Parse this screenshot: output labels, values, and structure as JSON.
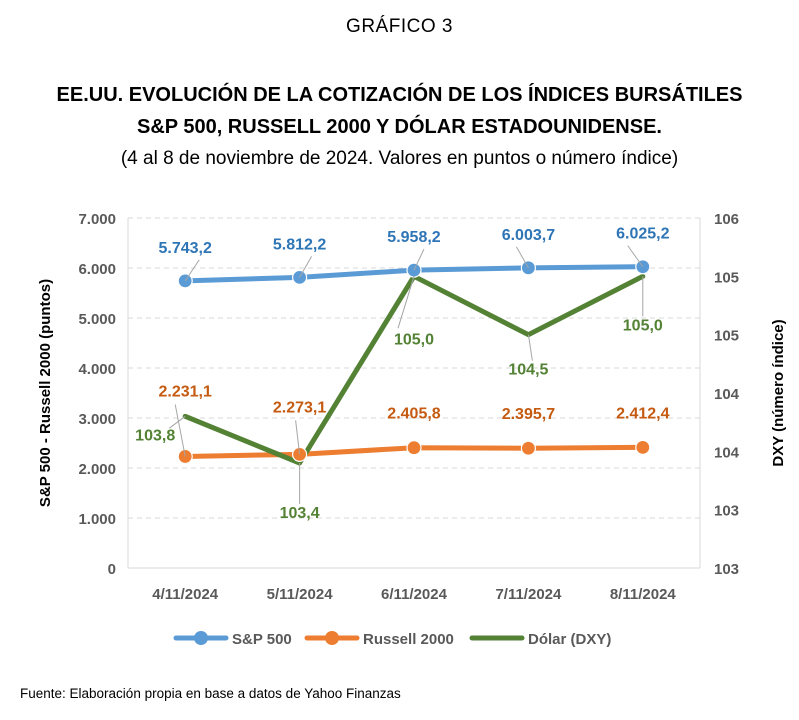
{
  "header": {
    "kicker": "GRÁFICO 3",
    "title_line1": "EE.UU. EVOLUCIÓN DE LA COTIZACIÓN DE LOS ÍNDICES BURSÁTILES",
    "title_line2": "S&P 500, RUSSELL 2000 Y DÓLAR ESTADOUNIDENSE.",
    "subtitle": "(4 al 8 de noviembre de 2024. Valores en puntos o número índice)"
  },
  "source": "Fuente: Elaboración propia en base a datos de Yahoo Finanzas",
  "chart_data": {
    "type": "line",
    "categories": [
      "4/11/2024",
      "5/11/2024",
      "6/11/2024",
      "7/11/2024",
      "8/11/2024"
    ],
    "ylabel": "S&P 500 - Russell 2000 (puntos)",
    "y2label": "DXY (número índice)",
    "ylim": [
      0,
      7000
    ],
    "y_ticks": [
      0,
      1000,
      2000,
      3000,
      4000,
      5000,
      6000,
      7000
    ],
    "y_tick_labels": [
      "0",
      "1.000",
      "2.000",
      "3.000",
      "4.000",
      "5.000",
      "6.000",
      "7.000"
    ],
    "y2lim": [
      102.5,
      105.5
    ],
    "y2_ticks": [
      102.5,
      103,
      103.5,
      104,
      104.5,
      105,
      105.5
    ],
    "y2_tick_labels": [
      "103",
      "103",
      "104",
      "104",
      "105",
      "105",
      "106"
    ],
    "grid": true,
    "legend_position": "bottom",
    "series": [
      {
        "name": "S&P 500",
        "axis": "left",
        "color": "#5B9BD5",
        "marker": "circle",
        "values": [
          5743.2,
          5812.2,
          5958.2,
          6003.7,
          6025.2
        ],
        "labels": [
          "5.743,2",
          "5.812,2",
          "5.958,2",
          "6.003,7",
          "6.025,2"
        ],
        "label_color": "#2E75B6"
      },
      {
        "name": "Russell 2000",
        "axis": "left",
        "color": "#ED7D31",
        "marker": "circle",
        "values": [
          2231.1,
          2273.1,
          2405.8,
          2395.7,
          2412.4
        ],
        "labels": [
          "2.231,1",
          "2.273,1",
          "2.405,8",
          "2.395,7",
          "2.412,4"
        ],
        "label_color": "#C55A11"
      },
      {
        "name": "Dólar (DXY)",
        "axis": "right",
        "color": "#548235",
        "marker": "none",
        "values": [
          103.8,
          103.4,
          105.0,
          104.5,
          105.0
        ],
        "labels": [
          "103,8",
          "103,4",
          "105,0",
          "104,5",
          "105,0"
        ],
        "label_color": "#548235"
      }
    ]
  }
}
